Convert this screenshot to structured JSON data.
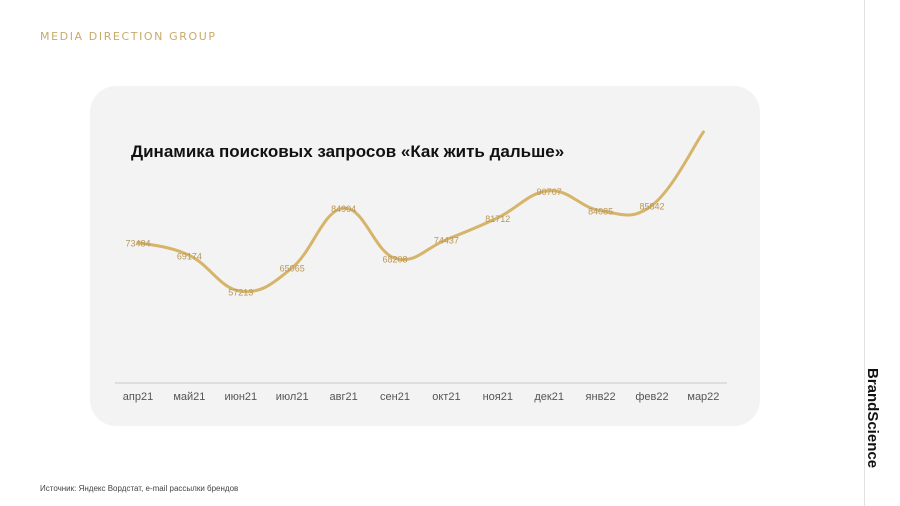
{
  "header": {
    "brand": "MEDIA DIRECTION GROUP"
  },
  "side": {
    "brand": "BrandScience"
  },
  "footer": {
    "source": "Источник: Яндекс Вордстат, e-mail рассылки брендов"
  },
  "colors": {
    "accent": "#c8a96a",
    "line": "#d6b46a",
    "label": "#b8975a",
    "axis_text": "#555555"
  },
  "chart_data": {
    "type": "line",
    "title": "Динамика поисковых запросов «Как жить дальше»",
    "categories": [
      "апр21",
      "май21",
      "июн21",
      "июл21",
      "авг21",
      "сен21",
      "окт21",
      "ноя21",
      "дек21",
      "янв22",
      "фев22",
      "мар22"
    ],
    "series": [
      {
        "values": [
          73484,
          69174,
          57213,
          65065,
          84904,
          68208,
          74437,
          81712,
          90707,
          84085,
          85842,
          null
        ]
      }
    ],
    "data_labels": [
      "73484",
      "69174",
      "57213",
      "65065",
      "84904",
      "68208",
      "74437",
      "81712",
      "90707",
      "84085",
      "85842",
      ""
    ],
    "xlabel": "",
    "ylabel": "",
    "grid": false,
    "legend": "none"
  }
}
